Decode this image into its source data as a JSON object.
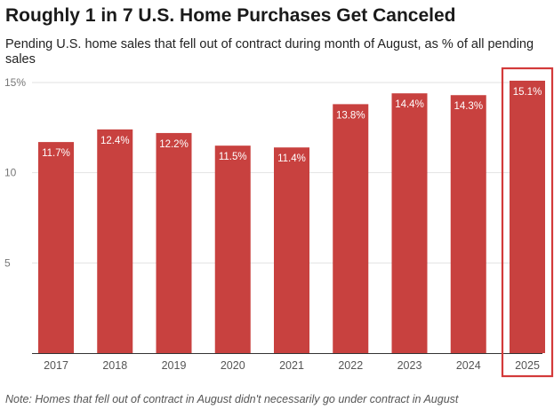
{
  "chart_data": {
    "type": "bar",
    "title": "Roughly 1 in 7 U.S. Home Purchases Get Canceled",
    "subtitle": "Pending U.S. home sales that fell out of contract during month of August, as % of all pending sales",
    "categories": [
      "2017",
      "2018",
      "2019",
      "2020",
      "2021",
      "2022",
      "2023",
      "2024",
      "2025"
    ],
    "values": [
      11.7,
      12.4,
      12.2,
      11.5,
      11.4,
      13.8,
      14.4,
      14.3,
      15.1
    ],
    "value_labels": [
      "11.7%",
      "12.4%",
      "12.2%",
      "11.5%",
      "11.4%",
      "13.8%",
      "14.4%",
      "14.3%",
      "15.1%"
    ],
    "y_ticks": [
      {
        "value": 5,
        "label": "5"
      },
      {
        "value": 10,
        "label": "10"
      },
      {
        "value": 15,
        "label": "15%"
      }
    ],
    "ylim": [
      0,
      15
    ],
    "grid": true,
    "highlight_category": "2025",
    "bar_color": "#c8413f",
    "highlight_box_color": "#d33a3a",
    "note": "Note: Homes that fell out of contract in August didn't necessarily go under contract in August"
  }
}
